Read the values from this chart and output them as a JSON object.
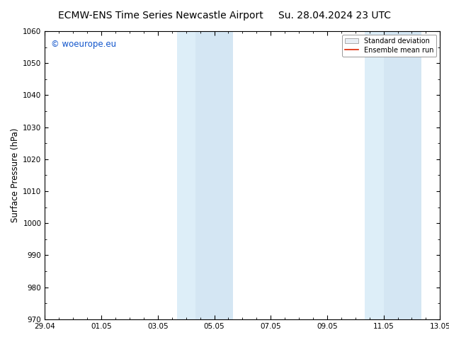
{
  "title_left": "ECMW-ENS Time Series Newcastle Airport",
  "title_right": "Su. 28.04.2024 23 UTC",
  "ylabel": "Surface Pressure (hPa)",
  "ylim": [
    970,
    1060
  ],
  "yticks": [
    970,
    980,
    990,
    1000,
    1010,
    1020,
    1030,
    1040,
    1050,
    1060
  ],
  "xtick_labels": [
    "29.04",
    "01.05",
    "03.05",
    "05.05",
    "07.05",
    "09.05",
    "11.05",
    "13.05"
  ],
  "xtick_positions": [
    0,
    2,
    4,
    6,
    8,
    10,
    12,
    14
  ],
  "x_start": 0,
  "x_end": 14,
  "band1_x1": 4.67,
  "band1_x2": 5.33,
  "band1b_x1": 5.33,
  "band1b_x2": 6.67,
  "band2_x1": 11.33,
  "band2_x2": 12.0,
  "band2b_x1": 12.0,
  "band2b_x2": 13.33,
  "band_color_light": "#ddeef8",
  "band_color_dark": "#cce0f0",
  "watermark_text": "© woeurope.eu",
  "watermark_color": "#1155cc",
  "legend_std_label": "Standard deviation",
  "legend_mean_label": "Ensemble mean run",
  "legend_std_facecolor": "#e8eef4",
  "legend_std_edgecolor": "#aaaaaa",
  "legend_mean_color": "#dd2200",
  "background_color": "#ffffff",
  "title_fontsize": 10,
  "tick_fontsize": 7.5,
  "ylabel_fontsize": 8.5
}
